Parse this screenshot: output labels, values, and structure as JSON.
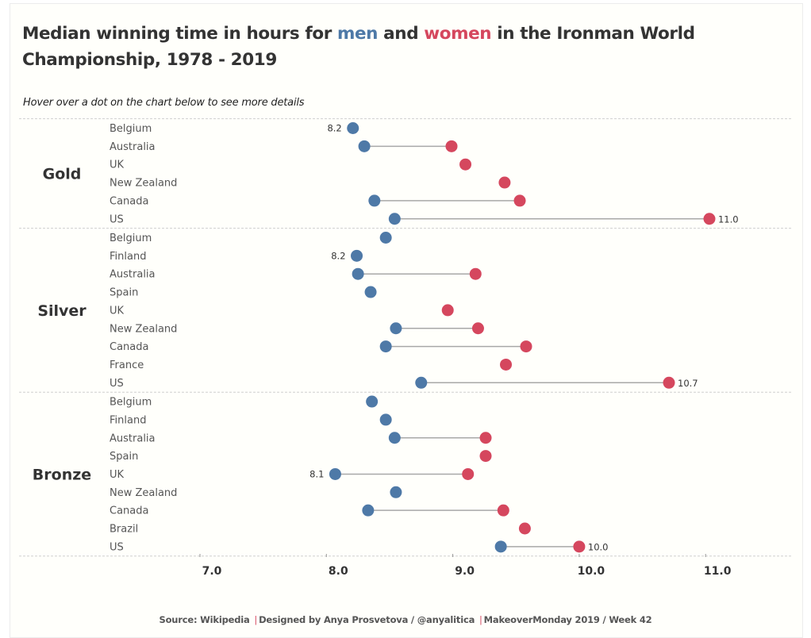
{
  "header": {
    "title_pre": "Median winning time in hours for ",
    "title_men": "men",
    "title_mid": " and ",
    "title_women": "women",
    "title_post": " in the Ironman World Championship, 1978 - 2019",
    "subtitle": "Hover over a dot on the chart below to see more details"
  },
  "footer": {
    "source": "Source: Wikipedia",
    "designer": "Designed by Anya Prosvetova / @anyalitica",
    "event": "MakeoverMonday 2019 / Week 42",
    "separator": "|"
  },
  "colors": {
    "men": "#4e79a7",
    "women": "#d5475e",
    "connector": "#a8a8a8"
  },
  "chart_data": {
    "type": "scatter",
    "subtype": "dumbbell",
    "title": "Median winning time in hours for men and women in the Ironman World Championship, 1978 - 2019",
    "xlabel": "",
    "ylabel": "",
    "xlim": [
      6.1,
      11.65
    ],
    "xticks": [
      7.0,
      8.0,
      9.0,
      10.0,
      11.0
    ],
    "xtick_labels": [
      "7.0",
      "8.0",
      "9.0",
      "10.0",
      "11.0"
    ],
    "grid": false,
    "legend": "in title (men = blue, women = red)",
    "series": [
      {
        "name": "men",
        "color": "#4e79a7"
      },
      {
        "name": "women",
        "color": "#d5475e"
      }
    ],
    "groups": [
      {
        "name": "Gold",
        "rows": [
          {
            "country": "Belgium",
            "men": 8.21,
            "women": null,
            "label": "8.2",
            "label_side": "men-left"
          },
          {
            "country": "Australia",
            "men": 8.3,
            "women": 8.99
          },
          {
            "country": "UK",
            "men": null,
            "women": 9.1
          },
          {
            "country": "New Zealand",
            "men": null,
            "women": 9.41
          },
          {
            "country": "Canada",
            "men": 8.38,
            "women": 9.53
          },
          {
            "country": "US",
            "men": 8.54,
            "women": 11.03,
            "label": "11.0",
            "label_side": "women-right"
          }
        ]
      },
      {
        "name": "Silver",
        "rows": [
          {
            "country": "Belgium",
            "men": 8.47,
            "women": null
          },
          {
            "country": "Finland",
            "men": 8.24,
            "women": null,
            "label": "8.2",
            "label_side": "men-left"
          },
          {
            "country": "Australia",
            "men": 8.25,
            "women": 9.18
          },
          {
            "country": "Spain",
            "men": 8.35,
            "women": null
          },
          {
            "country": "UK",
            "men": null,
            "women": 8.96
          },
          {
            "country": "New Zealand",
            "men": 8.55,
            "women": 9.2
          },
          {
            "country": "Canada",
            "men": 8.47,
            "women": 9.58
          },
          {
            "country": "France",
            "men": null,
            "women": 9.42
          },
          {
            "country": "US",
            "men": 8.75,
            "women": 10.71,
            "label": "10.7",
            "label_side": "women-right"
          }
        ]
      },
      {
        "name": "Bronze",
        "rows": [
          {
            "country": "Belgium",
            "men": 8.36,
            "women": null
          },
          {
            "country": "Finland",
            "men": 8.47,
            "women": null
          },
          {
            "country": "Australia",
            "men": 8.54,
            "women": 9.26
          },
          {
            "country": "Spain",
            "men": null,
            "women": 9.26
          },
          {
            "country": "UK",
            "men": 8.07,
            "women": 9.12,
            "label": "8.1",
            "label_side": "men-left"
          },
          {
            "country": "New Zealand",
            "men": 8.55,
            "women": null
          },
          {
            "country": "Canada",
            "men": 8.33,
            "women": 9.4
          },
          {
            "country": "Brazil",
            "men": null,
            "women": 9.57
          },
          {
            "country": "US",
            "men": 9.38,
            "women": 10.0,
            "label": "10.0",
            "label_side": "women-right"
          }
        ]
      }
    ]
  }
}
